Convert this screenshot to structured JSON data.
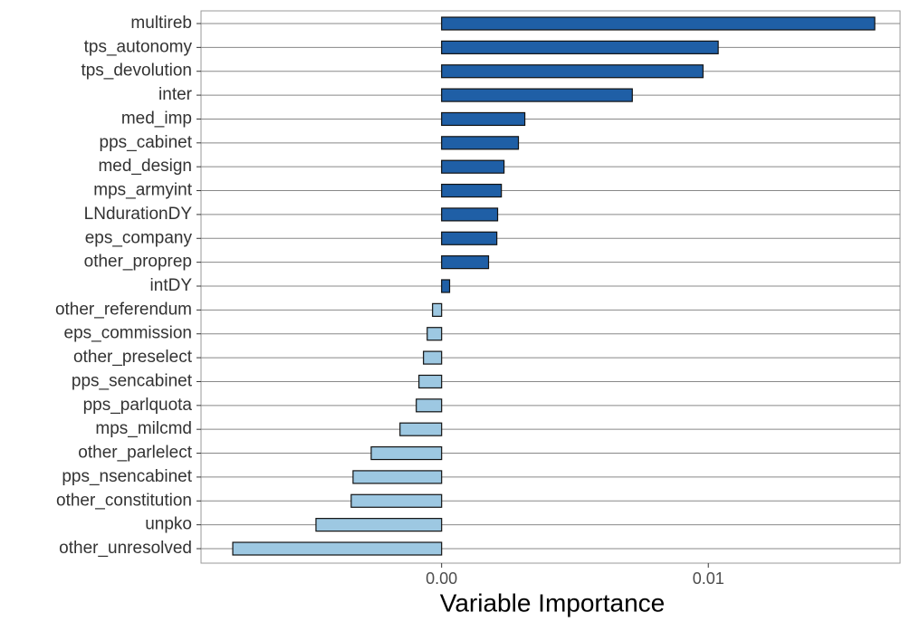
{
  "chart_data": {
    "type": "barh",
    "x_label": "Variable Importance",
    "categories": [
      "multireb",
      "tps_autonomy",
      "tps_devolution",
      "inter",
      "med_imp",
      "pps_cabinet",
      "med_design",
      "mps_armyint",
      "LNdurationDY",
      "eps_company",
      "other_proprep",
      "intDY",
      "other_referendum",
      "eps_commission",
      "other_preselect",
      "pps_sencabinet",
      "pps_parlquota",
      "mps_milcmd",
      "other_parlelect",
      "pps_nsencabinet",
      "other_constitution",
      "unpko",
      "other_unresolved"
    ],
    "values": [
      0.01624,
      0.01037,
      0.0098,
      0.00715,
      0.00312,
      0.00288,
      0.00234,
      0.00224,
      0.0021,
      0.00207,
      0.00176,
      0.0003,
      -0.00034,
      -0.00054,
      -0.00068,
      -0.00085,
      -0.00095,
      -0.00156,
      -0.00264,
      -0.00332,
      -0.00339,
      -0.00471,
      -0.00783
    ],
    "positive_color": "#1f5fa6",
    "negative_color": "#9dc8e2",
    "xlim": [
      -0.00902,
      0.01719
    ],
    "xticks": [
      {
        "value": 0,
        "label": "0.00"
      },
      0.01
    ],
    "grid": true
  }
}
